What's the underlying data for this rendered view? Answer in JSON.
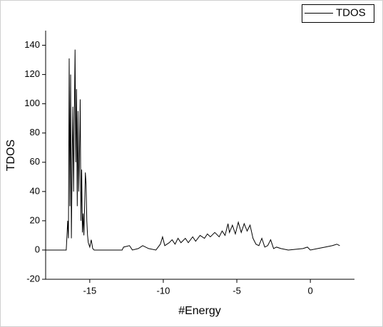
{
  "chart_data": {
    "type": "line",
    "xlabel": "#Energy",
    "ylabel": "TDOS",
    "xlim": [
      -18,
      3
    ],
    "ylim": [
      -20,
      150
    ],
    "xticks": [
      -15,
      -10,
      -5,
      0
    ],
    "yticks": [
      -20,
      0,
      20,
      40,
      60,
      80,
      100,
      120,
      140
    ],
    "legend": "top-right",
    "x": [
      -18,
      -16.6,
      -16.5,
      -16.45,
      -16.4,
      -16.35,
      -16.3,
      -16.25,
      -16.2,
      -16.15,
      -16.1,
      -16.05,
      -16.0,
      -15.95,
      -15.9,
      -15.85,
      -15.8,
      -15.75,
      -15.7,
      -15.65,
      -15.6,
      -15.55,
      -15.5,
      -15.45,
      -15.4,
      -15.35,
      -15.3,
      -15.25,
      -15.2,
      -15.15,
      -15.1,
      -15.0,
      -14.9,
      -14.8,
      -14.7,
      -12.8,
      -12.7,
      -12.3,
      -12.1,
      -11.7,
      -11.4,
      -11.0,
      -10.5,
      -10.2,
      -10.05,
      -9.9,
      -9.6,
      -9.4,
      -9.2,
      -9.0,
      -8.8,
      -8.5,
      -8.3,
      -8.0,
      -7.8,
      -7.5,
      -7.2,
      -7.0,
      -6.8,
      -6.5,
      -6.2,
      -6.0,
      -5.8,
      -5.6,
      -5.5,
      -5.3,
      -5.1,
      -4.9,
      -4.7,
      -4.5,
      -4.3,
      -4.1,
      -3.9,
      -3.7,
      -3.5,
      -3.3,
      -3.1,
      -2.9,
      -2.7,
      -2.5,
      -2.3,
      -2.0,
      -1.5,
      -0.5,
      -0.2,
      0,
      0.5,
      1.0,
      1.5,
      1.8,
      2.0
    ],
    "series": [
      {
        "name": "TDOS",
        "color": "#000000",
        "values": [
          0,
          0,
          20,
          8,
          131,
          30,
          120,
          8,
          60,
          98,
          40,
          90,
          137,
          60,
          110,
          30,
          95,
          40,
          65,
          103,
          20,
          55,
          12,
          25,
          10,
          30,
          53,
          45,
          20,
          10,
          5,
          2,
          7,
          1,
          0,
          0,
          2,
          3,
          0,
          1,
          3,
          1,
          0,
          4,
          9,
          3,
          5,
          7,
          4,
          8,
          5,
          8,
          5,
          9,
          6,
          10,
          8,
          11,
          9,
          12,
          9,
          13,
          10,
          18,
          12,
          17,
          11,
          19,
          12,
          18,
          13,
          17,
          8,
          4,
          3,
          8,
          2,
          3,
          7,
          1,
          2,
          1,
          0,
          1,
          2,
          0,
          1,
          2,
          3,
          4,
          3
        ]
      }
    ]
  }
}
